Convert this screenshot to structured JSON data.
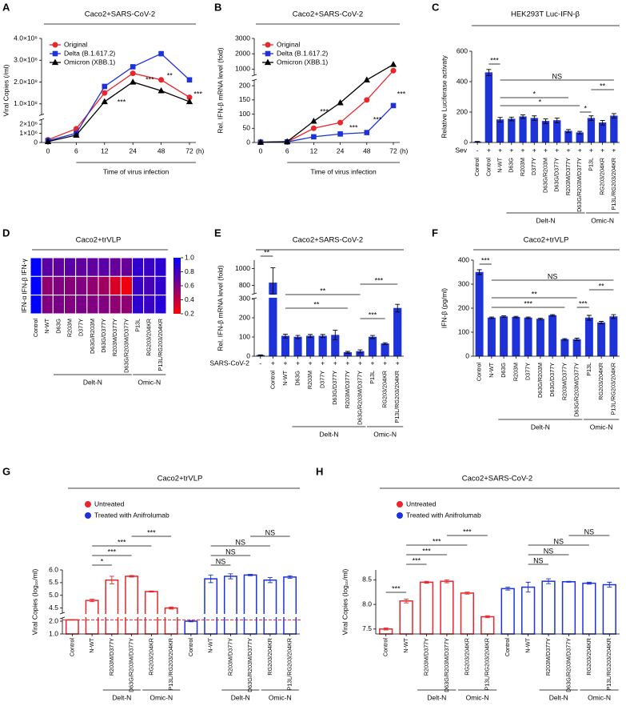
{
  "chart_data": [
    {
      "panel": "A",
      "type": "line",
      "title": "Caco2+SARS-CoV-2",
      "y_label": "Viral Copies (/ml)",
      "x_label": "Time of virus infection",
      "x_unit": "(h)",
      "categories": [
        "0",
        "6",
        "12",
        "24",
        "48",
        "72"
      ],
      "series": [
        {
          "name": "Original",
          "color": "#e8262b",
          "marker": "circle",
          "values": [
            300000,
            1500000,
            150000000,
            240000000,
            210000000,
            130000000
          ]
        },
        {
          "name": "Delta (B.1.617.2)",
          "color": "#1d33d8",
          "marker": "square",
          "values": [
            200000,
            1000000,
            180000000,
            270000000,
            330000000,
            210000000
          ]
        },
        {
          "name": "Omicron (XBB.1)",
          "color": "#000000",
          "marker": "triangle",
          "values": [
            100000,
            800000,
            110000000,
            200000000,
            160000000,
            110000000
          ]
        }
      ],
      "ylim": [
        0,
        400000000
      ],
      "ybreak": [
        2500000,
        50000000
      ],
      "yticks": [
        0,
        {
          "value": 1000000,
          "label": "1×10⁶"
        },
        {
          "value": 2000000,
          "label": "2×10⁶"
        },
        {
          "value": 100000000,
          "label": "1.0×10⁸"
        },
        {
          "value": 200000000,
          "label": "2.0×10⁸"
        },
        {
          "value": 300000000,
          "label": "3.0×10⁸"
        },
        {
          "value": 400000000,
          "label": "4.0×10⁸"
        }
      ],
      "legend": "upper left",
      "annotations": [
        "***",
        "***",
        "**",
        "***"
      ]
    },
    {
      "panel": "B",
      "type": "line",
      "title": "Caco2+SARS-CoV-2",
      "y_label": "Rel. IFN-β mRNA level (fold)",
      "x_label": "Time of virus infection",
      "x_unit": "(h)",
      "categories": [
        "0",
        "6",
        "12",
        "24",
        "48",
        "72"
      ],
      "series": [
        {
          "name": "Original",
          "color": "#e8262b",
          "marker": "circle",
          "values": [
            1,
            2,
            50,
            70,
            150,
            900
          ]
        },
        {
          "name": "Delta (B.1.617.2)",
          "color": "#1d33d8",
          "marker": "square",
          "values": [
            1,
            2,
            20,
            30,
            35,
            130
          ]
        },
        {
          "name": "Omicron (XBB.1)",
          "color": "#000000",
          "marker": "triangle",
          "values": [
            1,
            3,
            75,
            140,
            230,
            1300
          ]
        }
      ],
      "ylim": [
        0,
        3000
      ],
      "ybreak": [
        220,
        600
      ],
      "yticks": [
        0,
        50,
        100,
        150,
        200,
        1000,
        2000,
        3000
      ],
      "legend": "upper left",
      "annotations": [
        "***",
        "***",
        "***",
        "***"
      ]
    },
    {
      "panel": "C",
      "type": "bar",
      "title": "HEK293T Luc-IFN-β",
      "y_label": "Relative Luciferase activaty",
      "categories": [
        "Control",
        "Control",
        "N-WT",
        "D63G",
        "R203M",
        "D377Y",
        "D63G/R203M",
        "D63G/D377Y",
        "R203M/D377Y",
        "D63G/R203M/D377Y",
        "P13L",
        "RG203/204KR",
        "P13L/RG203/204KR"
      ],
      "values": [
        5,
        460,
        150,
        155,
        170,
        160,
        140,
        145,
        75,
        65,
        160,
        130,
        175
      ],
      "errors": [
        2,
        20,
        15,
        12,
        12,
        15,
        15,
        15,
        10,
        8,
        15,
        15,
        15
      ],
      "color": "#1d33d8",
      "bar_style": "filled",
      "ylim": [
        0,
        600
      ],
      "yticks": [
        0,
        200,
        400,
        600
      ],
      "treatment_label": "Sev",
      "treatment": [
        "-",
        "+",
        "+",
        "+",
        "+",
        "+",
        "+",
        "+",
        "+",
        "+",
        "+",
        "+",
        "+"
      ],
      "groups": [
        "Delt-N",
        "Omic-N"
      ],
      "annotations": [
        "***",
        "NS",
        "**",
        "*",
        "*",
        "*"
      ]
    },
    {
      "panel": "D",
      "type": "heatmap",
      "title": "Caco2+trVLP",
      "rows": [
        "IFN-γ",
        "IFN-β",
        "IFN-α"
      ],
      "columns": [
        "Control",
        "N-WT",
        "D63G",
        "R203M",
        "D377Y",
        "D63G/R203M",
        "D63G/D377Y",
        "R203M/D377Y",
        "D63G/R203M/D377Y",
        "P13L",
        "RG203/204KR",
        "P13L/RG203/204KR"
      ],
      "values": [
        [
          1.0,
          0.72,
          0.7,
          0.72,
          0.7,
          0.7,
          0.72,
          0.68,
          0.68,
          0.85,
          0.82,
          0.86
        ],
        [
          1.0,
          0.55,
          0.6,
          0.58,
          0.6,
          0.55,
          0.5,
          0.32,
          0.25,
          0.82,
          0.78,
          0.85
        ],
        [
          1.0,
          0.6,
          0.62,
          0.6,
          0.62,
          0.6,
          0.6,
          0.55,
          0.55,
          0.86,
          0.82,
          0.88
        ]
      ],
      "colorscale": [
        "#ff0000",
        "#0000ff"
      ],
      "clim": [
        0.2,
        1
      ],
      "cticks": [
        0.2,
        0.4,
        0.6,
        0.8,
        {
          "value": 1,
          "label": "1.0"
        }
      ],
      "groups": [
        "Delt-N",
        "Omic-N"
      ]
    },
    {
      "panel": "E",
      "type": "bar",
      "title": "Caco2+SARS-CoV-2",
      "y_label": "Rel. IFN-β mRNA level (fold)",
      "categories": [
        null,
        "Control",
        "N-WT",
        "D63G",
        "R203M",
        "D377Y",
        "D63G/D377Y",
        "R203M/D377Y",
        "D63G/R203M/D377Y",
        "P13L",
        "RG203/204KR",
        "P13L/RG203/204KR"
      ],
      "values": [
        5,
        830,
        105,
        100,
        105,
        105,
        110,
        20,
        25,
        100,
        65,
        250
      ],
      "errors": [
        2,
        180,
        10,
        8,
        8,
        8,
        25,
        5,
        8,
        8,
        5,
        20
      ],
      "color": "#1d33d8",
      "bar_style": "filled",
      "ylim": [
        0,
        1100
      ],
      "ybreak": [
        300,
        700
      ],
      "yticks": [
        0,
        100,
        200,
        300,
        800,
        1000
      ],
      "treatment_label": "SARS-CoV-2",
      "treatment": [
        "-",
        "+",
        "+",
        "+",
        "+",
        "+",
        "+",
        "+",
        "+",
        "+",
        "+",
        "+"
      ],
      "groups": [
        "Delt-N",
        "Omic-N"
      ],
      "annotations": [
        "**",
        "***",
        "**",
        "**",
        "***"
      ]
    },
    {
      "panel": "F",
      "type": "bar",
      "title": "Caco2+trVLP",
      "y_label": "IFN-β (pg/ml)",
      "categories": [
        "Control",
        "N-WT",
        "D63G",
        "R203M",
        "D377Y",
        "D63G/R203M",
        "D63G/D377Y",
        "R203M/D377Y",
        "D63G/R203M/D377Y",
        "P13L",
        "RG203/204KR",
        "P13L/RG203/204KR"
      ],
      "values": [
        350,
        160,
        165,
        163,
        160,
        155,
        170,
        70,
        70,
        160,
        140,
        165
      ],
      "errors": [
        10,
        3,
        3,
        3,
        3,
        3,
        3,
        3,
        5,
        10,
        5,
        8
      ],
      "color": "#1d33d8",
      "bar_style": "filled",
      "ylim": [
        0,
        400
      ],
      "yticks": [
        0,
        100,
        200,
        300,
        400
      ],
      "groups": [
        "Delt-N",
        "Omic-N"
      ],
      "annotations": [
        "***",
        "NS",
        "**",
        "**",
        "***",
        "***"
      ]
    },
    {
      "panel": "G",
      "type": "bar",
      "title": "Caco2+trVLP",
      "y_label": "Viral Copies (log₁₀/ml)",
      "categories": [
        "Control",
        "N-WT",
        "R203M/D377Y",
        "D63G/R203M/D377Y",
        "RG203/204KR",
        "P13L/RG203/204KR",
        "Control",
        "N-WT",
        "R203M/D377Y",
        "D63G/R203M/D377Y",
        "RG203/204KR",
        "P13L/RG203/204KR"
      ],
      "series": [
        {
          "name": "Untreated",
          "color": "#e8262b",
          "values": [
            2.1,
            4.8,
            5.6,
            5.75,
            5.15,
            4.5,
            null,
            null,
            null,
            null,
            null,
            null
          ],
          "errors": [
            0.02,
            0.05,
            0.15,
            0.03,
            0.02,
            0.04,
            null,
            null,
            null,
            null,
            null,
            null
          ]
        },
        {
          "name": "Treated with Anifrolumab",
          "color": "#1d33d8",
          "values": [
            null,
            null,
            null,
            null,
            null,
            null,
            2.0,
            5.65,
            5.75,
            5.8,
            5.6,
            5.72
          ],
          "errors": [
            null,
            null,
            null,
            null,
            null,
            null,
            0.05,
            0.15,
            0.1,
            0.03,
            0.1,
            0.05
          ]
        }
      ],
      "bar_style": "outline",
      "ylim": [
        1,
        6
      ],
      "ybreak": [
        2.25,
        4.3
      ],
      "yticks": [
        {
          "value": 1,
          "label": "1.0"
        },
        {
          "value": 2,
          "label": "2.0"
        },
        4.5,
        {
          "value": 5,
          "label": "5.0"
        },
        5.5,
        {
          "value": 6,
          "label": "6.0"
        }
      ],
      "hline": 2.1,
      "hline_color": "#e8262b",
      "legend": "top",
      "groups": [
        "Delt-N",
        "Omic-N",
        "Delt-N",
        "Omic-N"
      ],
      "annotations": [
        "*",
        "***",
        "***",
        "***",
        "NS",
        "NS",
        "NS",
        "NS"
      ]
    },
    {
      "panel": "H",
      "type": "bar",
      "title": "Caco2+SARS-CoV-2",
      "y_label": "Viral Copies (log₁₀/ml)",
      "categories": [
        "Control",
        "N-WT",
        "R203M/D377Y",
        "D63G/R203M/D377Y",
        "RG203/204KR",
        "P13L/RG203/204KR",
        "Control",
        "N-WT",
        "R203M/D377Y",
        "D63G/R203M/D377Y",
        "RG203/204KR",
        "P13L/RG203/204KR"
      ],
      "series": [
        {
          "name": "Untreated",
          "color": "#e8262b",
          "values": [
            7.5,
            8.07,
            8.45,
            8.47,
            8.23,
            7.75,
            null,
            null,
            null,
            null,
            null,
            null
          ],
          "errors": [
            0.02,
            0.04,
            0.02,
            0.03,
            0.02,
            0.02,
            null,
            null,
            null,
            null,
            null,
            null
          ]
        },
        {
          "name": "Treated with Anifrolumab",
          "color": "#1d33d8",
          "values": [
            null,
            null,
            null,
            null,
            null,
            null,
            8.32,
            8.35,
            8.47,
            8.46,
            8.43,
            8.4
          ],
          "errors": [
            null,
            null,
            null,
            null,
            null,
            null,
            0.03,
            0.1,
            0.05,
            0.01,
            0.02,
            0.05
          ]
        }
      ],
      "bar_style": "outline",
      "ylim": [
        7.4,
        8.7
      ],
      "yticks": [
        7.5,
        {
          "value": 8,
          "label": "8.0"
        },
        8.5
      ],
      "legend": "top",
      "groups": [
        "Delt-N",
        "Omic-N",
        "Delt-N",
        "Omic-N"
      ],
      "annotations": [
        "***",
        "***",
        "***",
        "***",
        "***",
        "NS",
        "NS",
        "NS",
        "NS"
      ]
    }
  ]
}
